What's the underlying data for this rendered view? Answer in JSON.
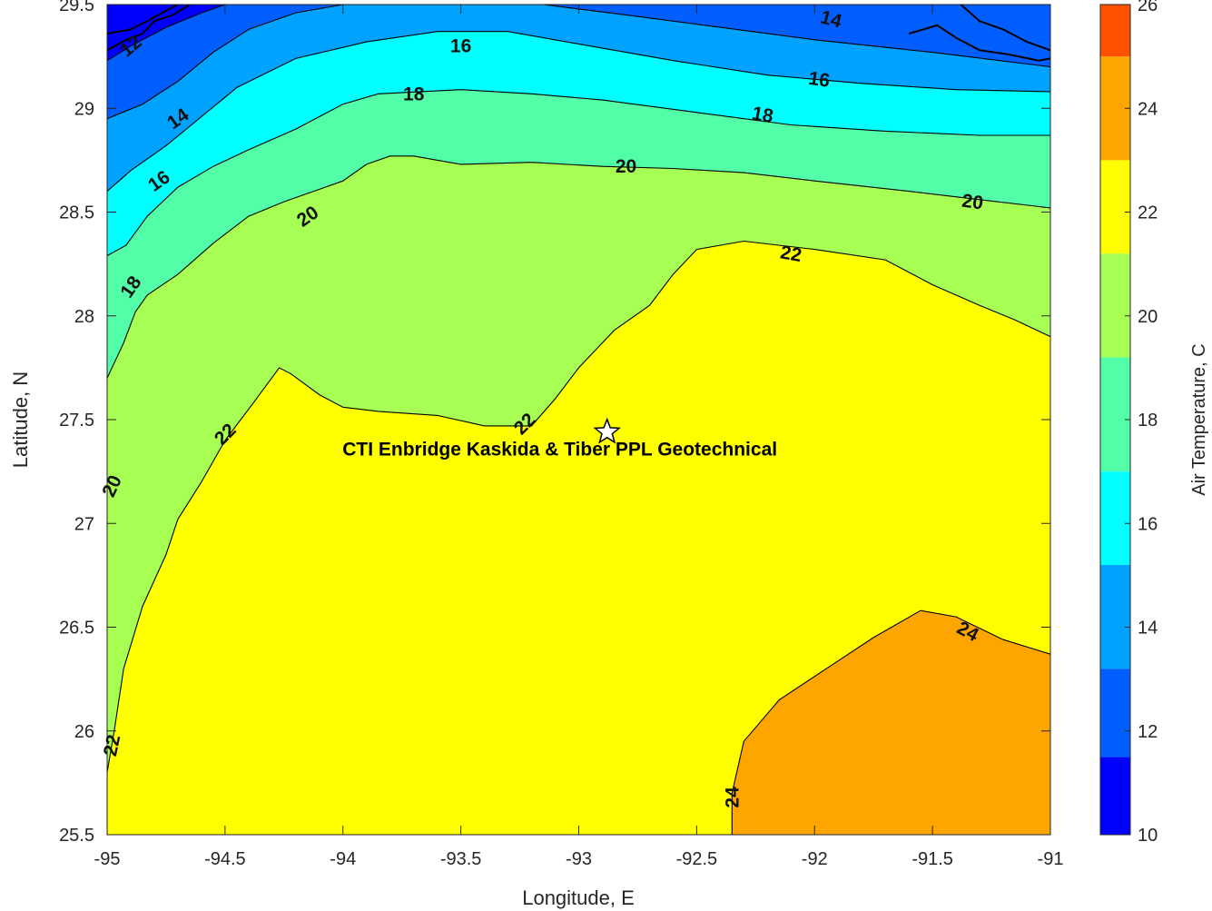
{
  "chart_data": {
    "type": "contour",
    "xlabel": "Longitude, E",
    "ylabel": "Latitude, N",
    "xlim": [
      -95,
      -91
    ],
    "ylim": [
      25.5,
      29.5
    ],
    "x_ticks": [
      "-95",
      "-94.5",
      "-94",
      "-93.5",
      "-93",
      "-92.5",
      "-92",
      "-91.5",
      "-91"
    ],
    "y_ticks": [
      "25.5",
      "26",
      "26.5",
      "27",
      "27.5",
      "28",
      "28.5",
      "29",
      "29.5"
    ],
    "colorbar": {
      "label": "Air Temperature, C",
      "range": [
        10,
        26
      ],
      "ticks": [
        "10",
        "12",
        "14",
        "16",
        "18",
        "20",
        "22",
        "24",
        "26"
      ],
      "levels": [
        {
          "min": 10,
          "max": 11.5,
          "color": "#0000ff"
        },
        {
          "min": 11.5,
          "max": 13.2,
          "color": "#005eff"
        },
        {
          "min": 13.2,
          "max": 15.2,
          "color": "#00a2ff"
        },
        {
          "min": 15.2,
          "max": 17.0,
          "color": "#00ffff"
        },
        {
          "min": 17.0,
          "max": 19.2,
          "color": "#52ffa8"
        },
        {
          "min": 19.2,
          "max": 21.2,
          "color": "#a6ff52"
        },
        {
          "min": 21.2,
          "max": 23.0,
          "color": "#ffff00"
        },
        {
          "min": 23.0,
          "max": 25.0,
          "color": "#ffa500"
        },
        {
          "min": 25.0,
          "max": 26.0,
          "color": "#ff5200"
        }
      ]
    },
    "contour_levels": [
      12,
      14,
      16,
      18,
      20,
      22,
      24
    ],
    "contours": [
      {
        "level": 12,
        "color": "#005eff",
        "points": [
          [
            -95,
            29.23
          ],
          [
            -94.9,
            29.3
          ],
          [
            -94.75,
            29.39
          ],
          [
            -94.6,
            29.46
          ],
          [
            -94.5,
            29.5
          ]
        ]
      },
      {
        "level": 14,
        "color": "#00a2ff",
        "points": [
          [
            -95,
            28.95
          ],
          [
            -94.85,
            29.02
          ],
          [
            -94.7,
            29.13
          ],
          [
            -94.55,
            29.27
          ],
          [
            -94.4,
            29.38
          ],
          [
            -94.2,
            29.46
          ],
          [
            -94,
            29.5
          ]
        ],
        "upper": [
          [
            -93.15,
            29.5
          ],
          [
            -92.8,
            29.45
          ],
          [
            -92.4,
            29.39
          ],
          [
            -92,
            29.33
          ],
          [
            -91.5,
            29.27
          ],
          [
            -91,
            29.2
          ]
        ]
      },
      {
        "level": 16,
        "color": "#00ffff",
        "points": [
          [
            -95,
            28.6
          ],
          [
            -94.9,
            28.7
          ],
          [
            -94.75,
            28.82
          ],
          [
            -94.6,
            28.96
          ],
          [
            -94.45,
            29.1
          ],
          [
            -94.2,
            29.24
          ],
          [
            -93.9,
            29.32
          ],
          [
            -93.6,
            29.37
          ],
          [
            -93.3,
            29.37
          ],
          [
            -93,
            29.31
          ],
          [
            -92.6,
            29.23
          ],
          [
            -92.2,
            29.16
          ],
          [
            -91.8,
            29.12
          ],
          [
            -91.4,
            29.09
          ],
          [
            -91,
            29.08
          ]
        ]
      },
      {
        "level": 18,
        "color": "#52ffa8",
        "points": [
          [
            -95,
            28.29
          ],
          [
            -94.92,
            28.34
          ],
          [
            -94.83,
            28.48
          ],
          [
            -94.7,
            28.62
          ],
          [
            -94.55,
            28.72
          ],
          [
            -94.4,
            28.8
          ],
          [
            -94.2,
            28.9
          ],
          [
            -94,
            29.02
          ],
          [
            -93.85,
            29.07
          ],
          [
            -93.5,
            29.09
          ],
          [
            -93.2,
            29.07
          ],
          [
            -92.9,
            29.04
          ],
          [
            -92.5,
            28.98
          ],
          [
            -92.1,
            28.92
          ],
          [
            -91.7,
            28.89
          ],
          [
            -91.3,
            28.87
          ],
          [
            -91,
            28.87
          ]
        ]
      },
      {
        "level": 20,
        "color": "#a6ff52",
        "points": [
          [
            -95,
            27.7
          ],
          [
            -94.93,
            27.87
          ],
          [
            -94.88,
            28.02
          ],
          [
            -94.83,
            28.1
          ],
          [
            -94.7,
            28.2
          ],
          [
            -94.55,
            28.35
          ],
          [
            -94.4,
            28.48
          ],
          [
            -94.25,
            28.55
          ],
          [
            -94.1,
            28.61
          ],
          [
            -94,
            28.65
          ],
          [
            -93.9,
            28.73
          ],
          [
            -93.8,
            28.77
          ],
          [
            -93.7,
            28.77
          ],
          [
            -93.5,
            28.73
          ],
          [
            -93.2,
            28.74
          ],
          [
            -92.9,
            28.72
          ],
          [
            -92.6,
            28.71
          ],
          [
            -92.3,
            28.69
          ],
          [
            -92,
            28.65
          ],
          [
            -91.6,
            28.6
          ],
          [
            -91.3,
            28.56
          ],
          [
            -91,
            28.52
          ]
        ]
      },
      {
        "level": 22,
        "color": "#ffff00",
        "points": [
          [
            -95,
            25.5
          ],
          [
            -95,
            25.8
          ],
          [
            -94.97,
            26.0
          ],
          [
            -94.93,
            26.3
          ],
          [
            -94.85,
            26.6
          ],
          [
            -94.75,
            26.85
          ],
          [
            -94.7,
            27.02
          ],
          [
            -94.6,
            27.2
          ],
          [
            -94.5,
            27.4
          ],
          [
            -94.38,
            27.58
          ],
          [
            -94.27,
            27.75
          ],
          [
            -94.22,
            27.72
          ],
          [
            -94.1,
            27.62
          ],
          [
            -94,
            27.56
          ],
          [
            -93.85,
            27.54
          ],
          [
            -93.6,
            27.52
          ],
          [
            -93.4,
            27.47
          ],
          [
            -93.2,
            27.47
          ],
          [
            -93.1,
            27.6
          ],
          [
            -93,
            27.75
          ],
          [
            -92.85,
            27.93
          ],
          [
            -92.7,
            28.05
          ],
          [
            -92.6,
            28.2
          ],
          [
            -92.5,
            28.32
          ],
          [
            -92.3,
            28.36
          ],
          [
            -92.0,
            28.32
          ],
          [
            -91.7,
            28.27
          ],
          [
            -91.5,
            28.15
          ],
          [
            -91.3,
            28.05
          ],
          [
            -91.15,
            27.98
          ],
          [
            -91,
            27.9
          ]
        ]
      },
      {
        "level": 24,
        "color": "#ffa500",
        "points": [
          [
            -92.35,
            25.5
          ],
          [
            -92.35,
            25.7
          ],
          [
            -92.3,
            25.95
          ],
          [
            -92.15,
            26.15
          ],
          [
            -91.95,
            26.3
          ],
          [
            -91.75,
            26.45
          ],
          [
            -91.55,
            26.58
          ],
          [
            -91.4,
            26.55
          ],
          [
            -91.2,
            26.44
          ],
          [
            -91,
            26.37
          ]
        ]
      }
    ],
    "contour_labels": [
      {
        "text": "12",
        "lon": -94.9,
        "lat": 29.3,
        "angle": -40
      },
      {
        "text": "14",
        "lon": -94.7,
        "lat": 28.95,
        "angle": -35
      },
      {
        "text": "14",
        "lon": -91.93,
        "lat": 29.43,
        "angle": 15
      },
      {
        "text": "16",
        "lon": -94.78,
        "lat": 28.65,
        "angle": -35
      },
      {
        "text": "16",
        "lon": -93.5,
        "lat": 29.3,
        "angle": 0
      },
      {
        "text": "16",
        "lon": -91.98,
        "lat": 29.14,
        "angle": 8
      },
      {
        "text": "18",
        "lon": -94.9,
        "lat": 28.14,
        "angle": -55
      },
      {
        "text": "18",
        "lon": -93.7,
        "lat": 29.07,
        "angle": 0
      },
      {
        "text": "18",
        "lon": -92.22,
        "lat": 28.97,
        "angle": 10
      },
      {
        "text": "20",
        "lon": -94.15,
        "lat": 28.48,
        "angle": -35
      },
      {
        "text": "20",
        "lon": -92.8,
        "lat": 28.72,
        "angle": 0
      },
      {
        "text": "20",
        "lon": -91.33,
        "lat": 28.55,
        "angle": 8
      },
      {
        "text": "20",
        "lon": -94.98,
        "lat": 27.18,
        "angle": -65
      },
      {
        "text": "22",
        "lon": -94.5,
        "lat": 27.43,
        "angle": -45
      },
      {
        "text": "22",
        "lon": -93.23,
        "lat": 27.48,
        "angle": -45
      },
      {
        "text": "22",
        "lon": -92.1,
        "lat": 28.3,
        "angle": 10
      },
      {
        "text": "22",
        "lon": -94.98,
        "lat": 25.93,
        "angle": -78
      },
      {
        "text": "24",
        "lon": -91.35,
        "lat": 26.48,
        "angle": 28
      },
      {
        "text": "24",
        "lon": -92.35,
        "lat": 25.68,
        "angle": -90
      }
    ],
    "annotations": [
      {
        "text": "CTI Enbridge  Kaskida & Tiber PPL Geotechnical",
        "lon": -92.88,
        "lat": 27.44,
        "marker": "star"
      }
    ]
  }
}
